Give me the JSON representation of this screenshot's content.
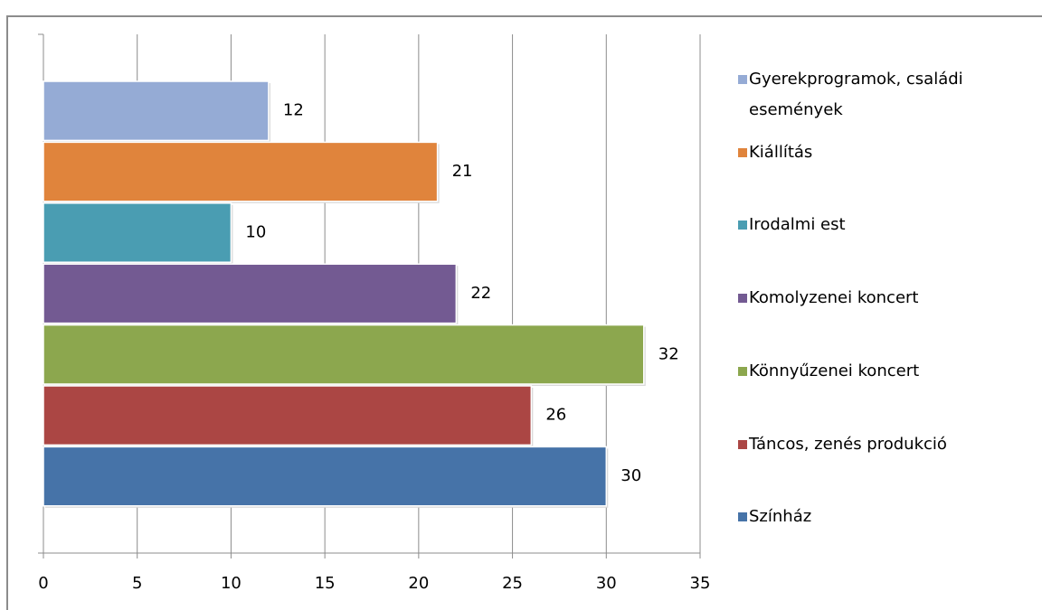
{
  "chart_data": {
    "type": "bar",
    "orientation": "horizontal",
    "series": [
      {
        "name": "Gyerekprogramok, családi események",
        "color": "#95abd5",
        "values": [
          12
        ]
      },
      {
        "name": "Kiállítás",
        "color": "#e0843c",
        "values": [
          21
        ]
      },
      {
        "name": "Irodalmi est",
        "color": "#4a9db2",
        "values": [
          10
        ]
      },
      {
        "name": "Komolyzenei koncert",
        "color": "#735a92",
        "values": [
          22
        ]
      },
      {
        "name": "Könnyűzenei koncert",
        "color": "#8ca74e",
        "values": [
          32
        ]
      },
      {
        "name": "Táncos, zenés produkció",
        "color": "#ab4644",
        "values": [
          26
        ]
      },
      {
        "name": "Színház",
        "color": "#4673a8",
        "values": [
          30
        ]
      }
    ],
    "xlim": [
      0,
      35
    ],
    "xticks": [
      0,
      5,
      10,
      15,
      20,
      25,
      30,
      35
    ],
    "grid": true,
    "legend": "right"
  }
}
